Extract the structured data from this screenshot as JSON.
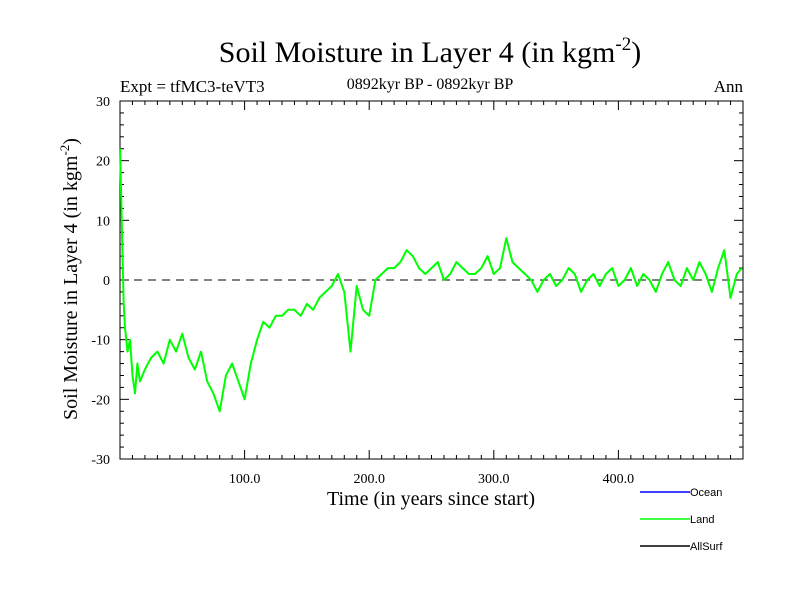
{
  "chart_data": {
    "type": "line",
    "title": "Soil Moisture in Layer 4 (in kgm",
    "title_superscript": "-2",
    "title_suffix": ")",
    "subtitle_left": "Expt = tfMC3-teVT3",
    "subtitle_center": "0892kyr BP - 0892kyr BP",
    "subtitle_right": "Ann",
    "xlabel": "Time (in years since start)",
    "ylabel": "Soil Moisture in Layer 4 (in kgm",
    "ylabel_superscript": "-2",
    "ylabel_suffix": ")",
    "xlim": [
      0,
      500
    ],
    "ylim": [
      -30,
      30
    ],
    "x_tick_values": [
      100,
      200,
      300,
      400
    ],
    "x_tick_labels": [
      "100.0",
      "200.0",
      "300.0",
      "400.0"
    ],
    "y_tick_values": [
      -30,
      -20,
      -10,
      0,
      10,
      20,
      30
    ],
    "y_tick_labels": [
      "-30",
      "-20",
      "-10",
      "0",
      "10",
      "20",
      "30"
    ],
    "zero_line": "dashed",
    "legend_position": "bottom-right",
    "series": [
      {
        "name": "Ocean",
        "color": "#0000ff",
        "values": []
      },
      {
        "name": "Land",
        "color": "#00ff00",
        "x": [
          0,
          1,
          2,
          3,
          4,
          6,
          8,
          10,
          12,
          14,
          16,
          20,
          25,
          30,
          35,
          40,
          45,
          50,
          55,
          60,
          65,
          70,
          75,
          80,
          85,
          90,
          95,
          100,
          105,
          110,
          115,
          120,
          125,
          130,
          135,
          140,
          145,
          150,
          155,
          160,
          165,
          170,
          175,
          180,
          185,
          190,
          195,
          200,
          205,
          210,
          215,
          220,
          225,
          230,
          235,
          240,
          245,
          250,
          255,
          260,
          265,
          270,
          275,
          280,
          285,
          290,
          295,
          300,
          305,
          310,
          315,
          320,
          325,
          330,
          335,
          340,
          345,
          350,
          355,
          360,
          365,
          370,
          375,
          380,
          385,
          390,
          395,
          400,
          405,
          410,
          415,
          420,
          425,
          430,
          435,
          440,
          445,
          450,
          455,
          460,
          465,
          470,
          475,
          480,
          485,
          490,
          495,
          499
        ],
        "values": [
          22,
          14,
          4,
          -4,
          -8,
          -12,
          -10,
          -16,
          -19,
          -14,
          -17,
          -15,
          -13,
          -12,
          -14,
          -10,
          -12,
          -9,
          -13,
          -15,
          -12,
          -17,
          -19,
          -22,
          -16,
          -14,
          -17,
          -20,
          -14,
          -10,
          -7,
          -8,
          -6,
          -6,
          -5,
          -5,
          -6,
          -4,
          -5,
          -3,
          -2,
          -1,
          1,
          -2,
          -12,
          -1,
          -5,
          -6,
          0,
          1,
          2,
          2,
          3,
          5,
          4,
          2,
          1,
          2,
          3,
          0,
          1,
          3,
          2,
          1,
          1,
          2,
          4,
          1,
          2,
          7,
          3,
          2,
          1,
          0,
          -2,
          0,
          1,
          -1,
          0,
          2,
          1,
          -2,
          0,
          1,
          -1,
          1,
          2,
          -1,
          0,
          2,
          -1,
          1,
          0,
          -2,
          1,
          3,
          0,
          -1,
          2,
          0,
          3,
          1,
          -2,
          2,
          5,
          -3,
          1,
          2
        ]
      },
      {
        "name": "AllSurf",
        "color": "#000000",
        "values": []
      }
    ]
  }
}
